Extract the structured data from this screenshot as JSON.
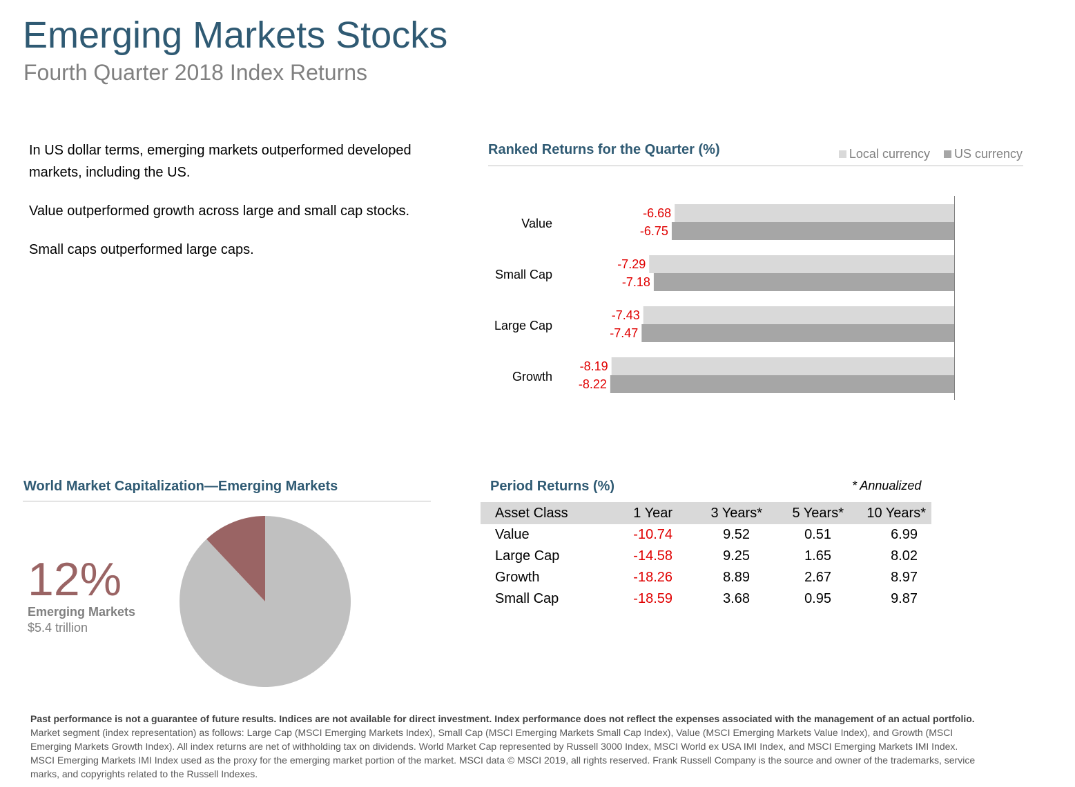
{
  "header": {
    "title": "Emerging Markets Stocks",
    "subtitle": "Fourth Quarter 2018 Index Returns"
  },
  "bullets": [
    "In US dollar terms, emerging markets outperformed developed markets, including the US.",
    "Value outperformed growth across large and small cap stocks.",
    "Small caps outperformed large caps."
  ],
  "colors": {
    "title": "#2f5a73",
    "local_currency": "#d9d9d9",
    "us_currency": "#a6a6a6",
    "negative": "#e00000",
    "emerging_slice": "#9a6464",
    "rest_slice": "#c0c0c0"
  },
  "chart_data": [
    {
      "type": "bar",
      "orientation": "horizontal",
      "title": "Ranked Returns for the Quarter (%)",
      "categories": [
        "Value",
        "Small Cap",
        "Large Cap",
        "Growth"
      ],
      "series": [
        {
          "name": "Local currency",
          "values": [
            -6.68,
            -7.29,
            -7.43,
            -8.19
          ]
        },
        {
          "name": "US currency",
          "values": [
            -6.75,
            -7.18,
            -7.47,
            -8.22
          ]
        }
      ],
      "legend": "top-right"
    },
    {
      "type": "pie",
      "title": "World Market Capitalization—Emerging Markets",
      "slices": [
        {
          "label": "Emerging Markets",
          "value": 12
        },
        {
          "label": "",
          "value": 88
        }
      ],
      "highlight": {
        "value_label": "12%",
        "name": "Emerging Markets",
        "amount": "$5.4 trillion"
      }
    },
    {
      "type": "table",
      "title": "Period Returns (%)",
      "note": "* Annualized",
      "columns": [
        "Asset Class",
        "1 Year",
        "3 Years*",
        "5 Years*",
        "10 Years*"
      ],
      "rows": [
        [
          "Value",
          "-10.74",
          "9.52",
          "0.51",
          "6.99"
        ],
        [
          "Large Cap",
          "-14.58",
          "9.25",
          "1.65",
          "8.02"
        ],
        [
          "Growth",
          "-18.26",
          "8.89",
          "2.67",
          "8.97"
        ],
        [
          "Small Cap",
          "-18.59",
          "3.68",
          "0.95",
          "9.87"
        ]
      ]
    }
  ],
  "footer": {
    "bold": "Past performance is not a guarantee of future results. Indices are not available for direct investment. Index performance does not reflect the expenses associated with the management of an actual portfolio.",
    "text": "Market segment (index representation) as follows: Large Cap (MSCI Emerging Markets Index), Small Cap (MSCI Emerging Markets Small Cap Index), Value (MSCI Emerging Markets Value Index), and Growth (MSCI Emerging Markets Growth Index). All index returns are net of withholding tax on dividends. World Market Cap represented by Russell 3000 Index, MSCI World ex USA IMI Index, and MSCI Emerging Markets IMI Index. MSCI Emerging Markets IMI Index used as the proxy for the emerging market portion of the market. MSCI data © MSCI 2019, all rights reserved. Frank Russell Company is the source and owner of the trademarks, service marks, and copyrights related to the Russell Indexes."
  }
}
